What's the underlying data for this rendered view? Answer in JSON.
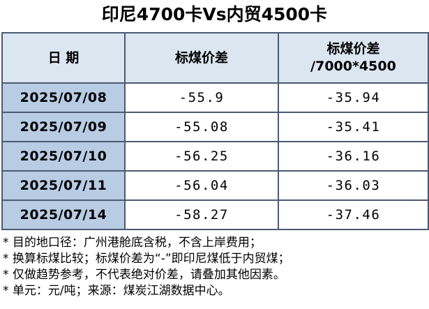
{
  "title": "印尼4700卡Vs内贸4500卡",
  "table": {
    "header": [
      "日 期",
      "标煤价差",
      [
        "标煤价差",
        "/7000*4500"
      ]
    ],
    "rows": [
      [
        "2025/07/08",
        "-55.9",
        "-35.94"
      ],
      [
        "2025/07/09",
        "-55.08",
        "-35.41"
      ],
      [
        "2025/07/10",
        "-56.25",
        "-36.16"
      ],
      [
        "2025/07/11",
        "-56.04",
        "-36.03"
      ],
      [
        "2025/07/14",
        "-58.27",
        "-37.46"
      ]
    ]
  },
  "notes": [
    "* 目的地口径：广州港舱底含税，不含上岸费用；",
    "* 换算标煤比较；标煤价差为“-”即印尼煤低于内贸煤；",
    "* 仅做趋势参考，不代表绝对价差，请叠加其他因素。",
    "* 单元：元/吨；来源：煤炭江湖数据中心。"
  ]
}
